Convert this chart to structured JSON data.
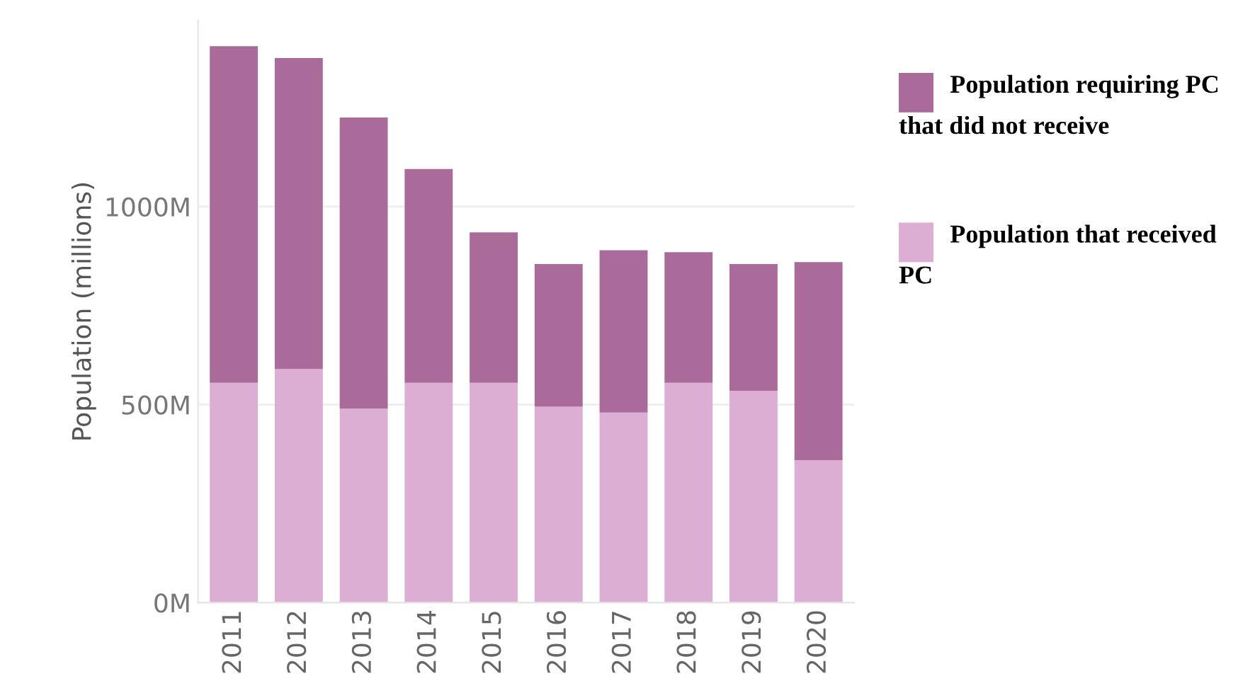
{
  "chart_data": {
    "type": "bar",
    "stacked": true,
    "ylabel": "Population (millions)",
    "categories": [
      "2011",
      "2012",
      "2013",
      "2014",
      "2015",
      "2016",
      "2017",
      "2018",
      "2019",
      "2020"
    ],
    "series": [
      {
        "name": "Population that received PC",
        "color": "#dcaed3",
        "values": [
          555,
          590,
          490,
          555,
          555,
          495,
          480,
          555,
          535,
          360
        ]
      },
      {
        "name": "Population requiring PC that did not receive",
        "color": "#aa6b9b",
        "values": [
          850,
          785,
          735,
          540,
          380,
          360,
          410,
          330,
          320,
          500
        ]
      }
    ],
    "ylim": [
      0,
      1470
    ],
    "yticks": [
      {
        "value": 0,
        "label": "0M"
      },
      {
        "value": 500,
        "label": "500M"
      },
      {
        "value": 1000,
        "label": "1000M"
      }
    ],
    "grid": "y",
    "legend": "right"
  }
}
